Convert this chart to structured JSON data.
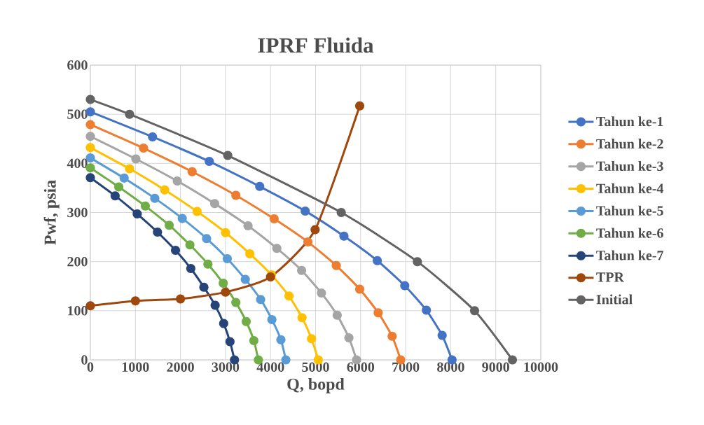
{
  "chart_data": {
    "type": "line",
    "title": "IPRF Fluida",
    "xlabel": "Q, bopd",
    "ylabel": "Pwf, psia",
    "xlim": [
      0,
      10000
    ],
    "ylim": [
      0,
      600
    ],
    "xticks": [
      0,
      1000,
      2000,
      3000,
      4000,
      5000,
      6000,
      7000,
      8000,
      9000,
      10000
    ],
    "yticks": [
      0,
      100,
      200,
      300,
      400,
      500,
      600
    ],
    "grid": true,
    "legend": "right",
    "marker": "circle",
    "line_style": "solid",
    "series": [
      {
        "name": "Tahun ke-1",
        "color": "#4472c4",
        "x": [
          0,
          1380,
          2640,
          3760,
          4770,
          5630,
          6370,
          6980,
          7460,
          7810,
          8030
        ],
        "values": [
          505,
          454,
          404,
          353,
          303,
          252,
          202,
          151,
          101,
          50,
          0
        ]
      },
      {
        "name": "Tahun ke-2",
        "color": "#ed7d31",
        "x": [
          0,
          1180,
          2260,
          3230,
          4080,
          4830,
          5460,
          5980,
          6390,
          6700,
          6890
        ],
        "values": [
          479,
          431,
          383,
          335,
          287,
          240,
          192,
          144,
          96,
          48,
          0
        ]
      },
      {
        "name": "Tahun ke-3",
        "color": "#a5a5a5",
        "x": [
          0,
          1010,
          1930,
          2760,
          3500,
          4140,
          4690,
          5130,
          5480,
          5740,
          5910
        ],
        "values": [
          455,
          409,
          364,
          318,
          273,
          227,
          182,
          136,
          91,
          45,
          0
        ]
      },
      {
        "name": "Tahun ke-4",
        "color": "#ffc000",
        "x": [
          0,
          870,
          1650,
          2370,
          3000,
          3540,
          4020,
          4410,
          4700,
          4910,
          5060
        ],
        "values": [
          432,
          389,
          346,
          302,
          259,
          216,
          173,
          130,
          86,
          43,
          0
        ]
      },
      {
        "name": "Tahun ke-5",
        "color": "#5b9bd5",
        "x": [
          0,
          750,
          1430,
          2040,
          2580,
          3040,
          3440,
          3780,
          4030,
          4230,
          4340
        ],
        "values": [
          411,
          370,
          329,
          288,
          247,
          206,
          164,
          123,
          82,
          41,
          0
        ]
      },
      {
        "name": "Tahun ke-6",
        "color": "#70ad47",
        "x": [
          0,
          630,
          1220,
          1750,
          2210,
          2610,
          2950,
          3230,
          3460,
          3630,
          3730
        ],
        "values": [
          391,
          352,
          313,
          274,
          234,
          195,
          156,
          117,
          78,
          39,
          0
        ]
      },
      {
        "name": "Tahun ke-7",
        "color": "#264478",
        "x": [
          0,
          550,
          1040,
          1490,
          1890,
          2230,
          2520,
          2770,
          2960,
          3100,
          3200
        ],
        "values": [
          371,
          334,
          297,
          260,
          223,
          186,
          148,
          111,
          74,
          37,
          0
        ]
      },
      {
        "name": "TPR",
        "color": "#9e480e",
        "x": [
          0,
          1000,
          2000,
          3000,
          4000,
          4990,
          5980
        ],
        "values": [
          110,
          120,
          124,
          138,
          169,
          265,
          517
        ]
      },
      {
        "name": "Initial",
        "color": "#636363",
        "x": [
          0,
          870,
          3050,
          5570,
          7260,
          8530,
          9370
        ],
        "values": [
          530,
          500,
          416,
          300,
          200,
          100,
          0
        ]
      }
    ]
  }
}
